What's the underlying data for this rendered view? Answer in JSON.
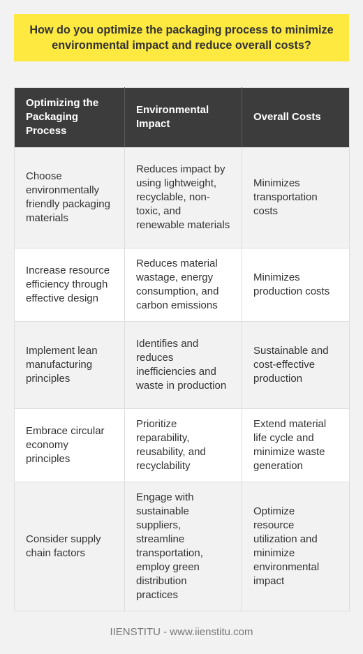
{
  "title": "How do you optimize the packaging process to minimize environmental impact and reduce overall costs?",
  "table": {
    "headers": [
      "Optimizing the Packaging Process",
      "Environmental Impact",
      "Overall Costs"
    ],
    "rows": [
      [
        "Choose environmentally friendly packaging materials",
        "Reduces impact by using lightweight, recyclable, non-toxic, and renewable materials",
        "Minimizes transportation costs"
      ],
      [
        "Increase resource efficiency through effective design",
        "Reduces material wastage, energy consumption, and carbon emissions",
        "Minimizes production costs"
      ],
      [
        "Implement lean manufacturing principles",
        "Identifies and reduces inefficiencies and waste in production",
        "Sustainable and cost-effective production"
      ],
      [
        "Embrace circular economy principles",
        "Prioritize reparability, reusability, and recyclability",
        "Extend material life cycle and minimize waste generation"
      ],
      [
        "Consider supply chain factors",
        "Engage with sustainable suppliers, streamline transportation, employ green distribution practices",
        "Optimize resource utilization and minimize environmental impact"
      ]
    ]
  },
  "footer": "IIENSTITU - www.iienstitu.com",
  "colors": {
    "title_background": "#fde93f",
    "header_background": "#3c3c3c",
    "page_background": "#f2f2f2"
  }
}
